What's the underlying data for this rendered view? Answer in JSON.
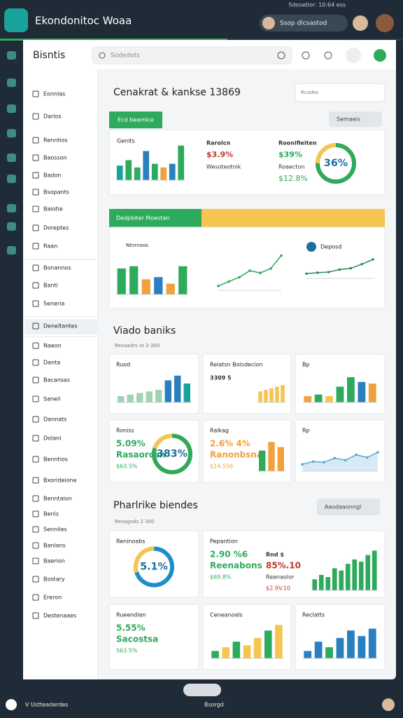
{
  "topbar": {
    "app_title": "Ekondonitoc Woaa",
    "status": "Sdosetlor: 10:64 ess",
    "user": "Ssop dlcsastod"
  },
  "header": {
    "title": "Bisntis",
    "search": "Sodedots"
  },
  "sidebar": {
    "items": [
      "Eonnlas",
      "Darlos",
      "Renntios",
      "Baosson",
      "Badon",
      "Bsopants",
      "Baiotie",
      "Doreptes",
      "Raan",
      "Bonannos",
      "Banti",
      "Seneria",
      "Deneltantes",
      "Naeon",
      "Danta",
      "Bacansas",
      "Saneli",
      "Dannats",
      "Dolanl",
      "Benntios",
      "Bxorideione",
      "Benntaion",
      "Benls",
      "Senniles",
      "Banlans",
      "Baerion",
      "Bostary",
      "Ereron",
      "Destenaaes"
    ]
  },
  "section1": {
    "title": "Cenakrat & kankse 13869",
    "search": "Rcodes",
    "tab": "Ecd bearnlce",
    "button": "Semaeis",
    "bars": {
      "kind": "bar",
      "title": "Genits",
      "values": [
        40,
        55,
        35,
        80,
        45,
        35,
        45,
        95
      ],
      "colors": [
        "#1aa39a",
        "#2eaa5c",
        "#2eaa5c",
        "#2a7fc1",
        "#2eaa5c",
        "#f0a03c",
        "#2a7fc1",
        "#2eaa5c"
      ],
      "ylim": [
        0,
        100
      ]
    },
    "mid": {
      "lines": [
        "Rarolcn",
        "$3.9%",
        "Wesoteotnik"
      ],
      "color": "#c0392b"
    },
    "right": {
      "lines": [
        "Roonifieiten",
        "$39%",
        "Roaecton",
        "$12.8%"
      ],
      "color": "#2eaa5c"
    },
    "donut": {
      "kind": "donut",
      "value": 75,
      "label": "36%",
      "color": "#2eaa5c",
      "ylim": [
        0,
        100
      ]
    }
  },
  "section2": {
    "banner": "Dedpbiter Moestan",
    "bars": {
      "kind": "bar",
      "title": "Ntnrnoos",
      "values": [
        60,
        65,
        35,
        40,
        25,
        65
      ],
      "colors": [
        "#2eaa5c",
        "#2eaa5c",
        "#f0a03c",
        "#2a7fc1",
        "#f0a03c",
        "#2eaa5c"
      ],
      "ylim": [
        0,
        100
      ]
    },
    "line1": {
      "kind": "line",
      "values": [
        10,
        20,
        30,
        45,
        40,
        50,
        80
      ],
      "color": "#2eaa5c",
      "ylim": [
        0,
        100
      ]
    },
    "line2": {
      "kind": "line",
      "title": "Deposd",
      "values": [
        15,
        18,
        20,
        28,
        32,
        45,
        60
      ],
      "color": "#2e8b57",
      "ylim": [
        0,
        100
      ]
    }
  },
  "section3": {
    "title": "Viado baniks",
    "subtitle": "Reoaadrs ot 3 300",
    "cards": [
      {
        "title": "Ruod",
        "chart": {
          "kind": "bar",
          "values": [
            20,
            25,
            30,
            35,
            40,
            70,
            85,
            60
          ],
          "colors": [
            "#9fd4b0",
            "#9fd4b0",
            "#9fd4b0",
            "#9fd4b0",
            "#9fd4b0",
            "#2a7fc1",
            "#2a7fc1",
            "#1aa39a"
          ],
          "ylim": [
            0,
            100
          ]
        }
      },
      {
        "title": "Relatsn Boisdecion",
        "columns": [
          {
            "lines": [
              "3309 5"
            ],
            "color": "#333333"
          }
        ],
        "chart": {
          "kind": "bar",
          "values": [
            35,
            40,
            45,
            50,
            55
          ],
          "color": "#f5c451",
          "ylim": [
            0,
            100
          ]
        }
      },
      {
        "title": "Bp",
        "chart": {
          "kind": "bar",
          "values": [
            20,
            25,
            20,
            50,
            80,
            65,
            60
          ],
          "colors": [
            "#f0a03c",
            "#2eaa5c",
            "#f5c451",
            "#2eaa5c",
            "#2eaa5c",
            "#2a7fc1",
            "#f0a03c"
          ],
          "ylim": [
            0,
            100
          ]
        }
      },
      {
        "title": "Roniss",
        "columns": [
          {
            "lines": [
              "5.09%",
              "Rasaorcen",
              "$63.5%"
            ],
            "color": "#2eaa5c"
          }
        ],
        "chart": {
          "kind": "donut",
          "value": 80,
          "label": "383%",
          "color": "#2eaa5c",
          "ylim": [
            0,
            100
          ]
        }
      },
      {
        "title": "Ralkag",
        "columns": [
          {
            "lines": [
              "2.6% 4%",
              "Ranonbsna",
              "$14.556"
            ],
            "color": "#f0a03c"
          }
        ],
        "chart": {
          "kind": "bar",
          "values": [
            60,
            85,
            70
          ],
          "colors": [
            "#2eaa5c",
            "#f0a03c",
            "#f0a03c"
          ],
          "ylim": [
            0,
            100
          ]
        }
      },
      {
        "title": "Rp",
        "chart": {
          "kind": "area",
          "values": [
            20,
            28,
            26,
            38,
            32,
            48,
            40,
            55
          ],
          "color": "#5aa7d8",
          "ylim": [
            0,
            100
          ]
        }
      }
    ]
  },
  "section4": {
    "title": "Pharlrike biendes",
    "subtitle": "Reoagods 2 300",
    "button": "Aaodaaonngl",
    "cards": [
      {
        "title": "Reninoabs",
        "chart": {
          "kind": "donut",
          "value": 70,
          "label": "5.1%",
          "color": "#1a8fd0",
          "ylim": [
            0,
            100
          ]
        }
      },
      {
        "title": "Pepantion",
        "columns": [
          {
            "lines": [
              "2.90 %6",
              "Reenabons",
              "$69.8%"
            ],
            "color": "#2eaa5c"
          },
          {
            "lines": [
              "Rnd $",
              "85%.10",
              "Reanaolor",
              "$2.9V.10"
            ],
            "color": "#c0392b"
          }
        ],
        "chart": {
          "kind": "bar",
          "values": [
            25,
            35,
            30,
            50,
            45,
            60,
            70,
            65,
            80,
            90
          ],
          "colors": [
            "#2eaa5c",
            "#2eaa5c",
            "#2eaa5c",
            "#2eaa5c",
            "#2eaa5c",
            "#2eaa5c",
            "#2eaa5c",
            "#2eaa5c",
            "#2eaa5c",
            "#2eaa5c"
          ],
          "ylim": [
            0,
            100
          ]
        }
      },
      {
        "title": "Rueendian",
        "columns": [
          {
            "lines": [
              "5.55%",
              "Sacostsa",
              "S63.5%"
            ],
            "color": "#2eaa5c"
          }
        ]
      },
      {
        "title": "Ceneanoals",
        "chart": {
          "kind": "bar",
          "values": [
            20,
            30,
            45,
            35,
            55,
            75,
            90
          ],
          "colors": [
            "#2eaa5c",
            "#f5c451",
            "#2eaa5c",
            "#f5c451",
            "#f5c451",
            "#2eaa5c",
            "#f5c451"
          ],
          "ylim": [
            0,
            100
          ]
        }
      },
      {
        "title": "Reclatts",
        "chart": {
          "kind": "bar",
          "values": [
            20,
            45,
            30,
            55,
            75,
            60,
            80
          ],
          "colors": [
            "#2a7fc1",
            "#2a7fc1",
            "#2eaa5c",
            "#2a7fc1",
            "#2a7fc1",
            "#2a7fc1",
            "#2a7fc1"
          ],
          "ylim": [
            0,
            100
          ]
        }
      }
    ]
  },
  "bottombar": {
    "left": "V Ustteaderdes",
    "center": "Bsorgd"
  }
}
